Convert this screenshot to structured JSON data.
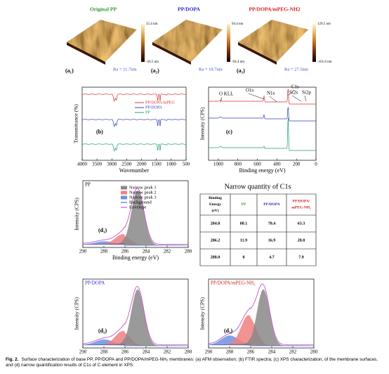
{
  "afm": [
    {
      "title": "Original  PP",
      "label": "(a₁)",
      "ra": "Ra = 11.7nm",
      "scale_max": "55.4 nm",
      "scale_min": "-56.5 nm"
    },
    {
      "title": "PP/DOPA",
      "label": "(a₂)",
      "ra": "Ra = 19.7nm",
      "scale_max": "94.4 nm",
      "scale_min": "-94.4 nm"
    },
    {
      "title": "PP/DOPA/mPEG-NH2",
      "label": "(a₃)",
      "ra": "Ra = 27.5nm",
      "scale_max": "129.5 nm",
      "scale_min": "-101.6 nm"
    }
  ],
  "ftir": {
    "panel": "(b)",
    "ylabel": "Transmittance (%)",
    "xlabel": "Wavenumber",
    "xticks": [
      4000,
      3500,
      3000,
      2500,
      2000,
      1500,
      1000,
      500
    ],
    "legend": [
      "PP/DOPA/mPEG",
      "PP/DOPA",
      "PP"
    ]
  },
  "xps": {
    "panel": "(c)",
    "ylabel": "Intensity (CPS)",
    "xlabel": "Binding energy (eV)",
    "xticks": [
      1000,
      800,
      600,
      400,
      200,
      0
    ],
    "annotations": [
      "O KLL",
      "O1s",
      "N1s",
      "C1s",
      "Si2s",
      "Si2p"
    ]
  },
  "c1s": [
    {
      "title": "PP",
      "panel": "(d₁)",
      "ylabel": "Intensity (CPS)",
      "xlabel": "Binding energy (eV)",
      "xticks": [
        290,
        288,
        286,
        284,
        282,
        280
      ],
      "legend": [
        "Narrow peak 1",
        "Narrow peak 2",
        "Narrow peak 3",
        "Background",
        "Envelope"
      ]
    },
    {
      "title": "PP/DOPA",
      "panel": "(d₂)",
      "ylabel": "Intensity (CPS)",
      "xlabel": "Binding energy (eV)",
      "xticks": [
        290,
        288,
        286,
        284,
        282,
        280
      ]
    },
    {
      "title": "PP/DOPA/mPEG-NH₂",
      "panel": "(d₃)",
      "ylabel": "Intensity (CPS)",
      "xlabel": "Binding energy (eV)",
      "xticks": [
        290,
        288,
        286,
        284,
        282,
        280
      ]
    }
  ],
  "table": {
    "title": "Narrow quantity of C1s",
    "header": [
      "Binding Energy (eV)",
      "PP",
      "PP/DOPA",
      "PP/DOPA/ mPEG-NH₂"
    ],
    "rows": [
      [
        "284.8",
        "88.1",
        "78.4",
        "63.3"
      ],
      [
        "286.2",
        "11.9",
        "16.9",
        "28.8"
      ],
      [
        "288.0",
        "0",
        "4.7",
        "7.9"
      ]
    ]
  },
  "caption": {
    "label": "Fig. 2.",
    "text": "Surface characterization of base PP, PP/DOPA and PP/DOPA/mPEG-NH₂ membranes: (a) AFM observation; (b) FTIR spectra; (c) XPS characterization, of the membrane surfaces, and (d) narrow quantification results of C1s of C element in XPS."
  }
}
